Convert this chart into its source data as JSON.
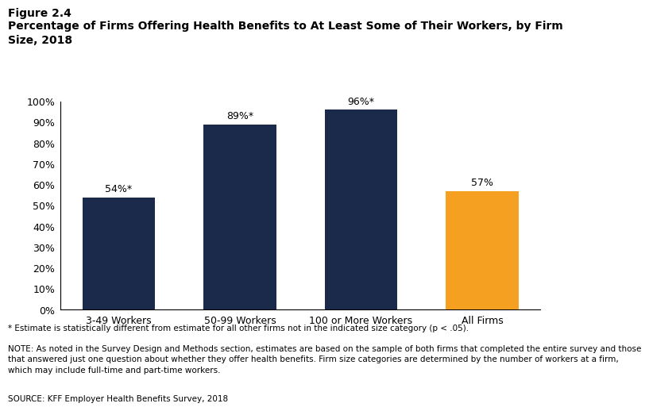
{
  "figure_label": "Figure 2.4",
  "title": "Percentage of Firms Offering Health Benefits to At Least Some of Their Workers, by Firm\nSize, 2018",
  "categories": [
    "3-49 Workers",
    "50-99 Workers",
    "100 or More Workers",
    "All Firms"
  ],
  "values": [
    54,
    89,
    96,
    57
  ],
  "bar_colors": [
    "#1b2a4a",
    "#1b2a4a",
    "#1b2a4a",
    "#f5a020"
  ],
  "bar_labels": [
    "54%*",
    "89%*",
    "96%*",
    "57%"
  ],
  "ylim": [
    0,
    100
  ],
  "yticks": [
    0,
    10,
    20,
    30,
    40,
    50,
    60,
    70,
    80,
    90,
    100
  ],
  "ytick_labels": [
    "0%",
    "10%",
    "20%",
    "30%",
    "40%",
    "50%",
    "60%",
    "70%",
    "80%",
    "90%",
    "100%"
  ],
  "footnote_star": "* Estimate is statistically different from estimate for all other firms not in the indicated size category (p < .05).",
  "footnote_note": "NOTE: As noted in the Survey Design and Methods section, estimates are based on the sample of both firms that completed the entire survey and those\nthat answered just one question about whether they offer health benefits. Firm size categories are determined by the number of workers at a firm,\nwhich may include full-time and part-time workers.",
  "footnote_source": "SOURCE: KFF Employer Health Benefits Survey, 2018",
  "background_color": "#ffffff"
}
